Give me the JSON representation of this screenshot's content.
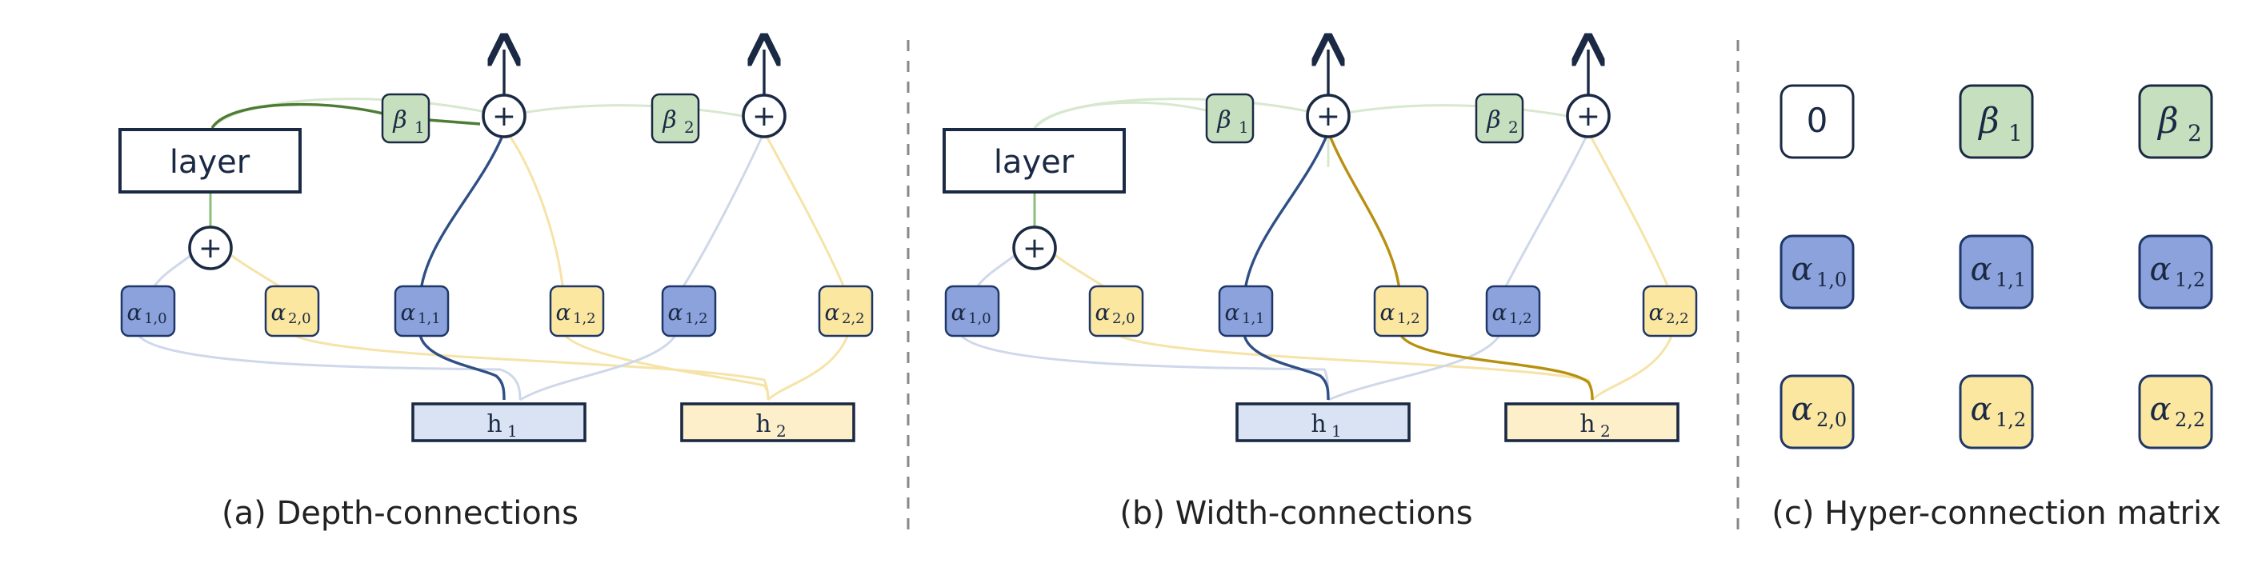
{
  "labels": {
    "layer": "layer",
    "plus": "+",
    "zero": "0",
    "alpha": "α",
    "beta": "β",
    "h": "h"
  },
  "panels": {
    "a": {
      "caption": "(a) Depth-connections"
    },
    "b": {
      "caption": "(b) Width-connections"
    },
    "c": {
      "caption": "(c) Hyper-connection matrix"
    }
  },
  "subscripts": {
    "a10": "1,0",
    "a20": "2,0",
    "a11": "1,1",
    "a12": "1,2",
    "a22": "2,2",
    "b1": "1",
    "b2": "2",
    "h1": "1",
    "h2": "2"
  },
  "colors": {
    "navy": "#1b2a44",
    "blue_fill": "#8ca2dc",
    "blue_stroke": "#1f3768",
    "yellow_fill": "#fce7a0",
    "green_fill": "#c6e0bf",
    "h1_fill": "#d9e3f3",
    "h2_fill": "#fdefc9",
    "green_line": "#4d7c34",
    "green_faint": "#d7e8cf",
    "blue_line": "#2f4f86",
    "blue_faint": "#cfd8ea",
    "gold_line": "#b8900f",
    "yellow_faint": "#f6e3a8"
  }
}
